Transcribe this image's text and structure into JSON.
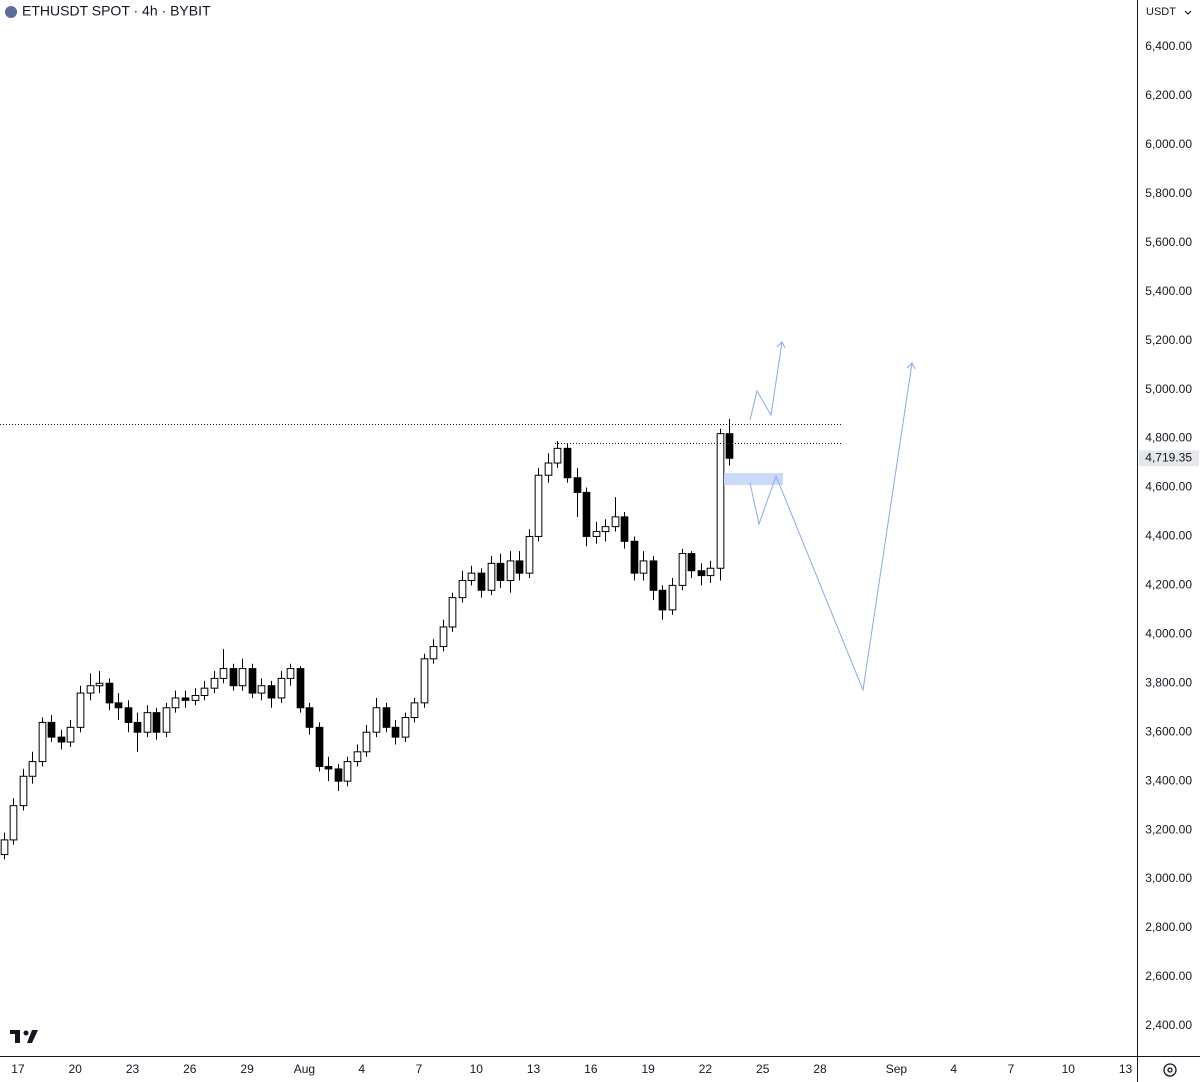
{
  "chart_data": {
    "type": "candlestick",
    "title": "ETHUSDT SPOT · 4h · BYBIT",
    "currency": "USDT",
    "colors": {
      "up": "#ffffff",
      "down": "#000000",
      "outline": "#000000"
    },
    "xlim": [
      16.06,
      75.6
    ],
    "xticks": [
      17,
      20,
      23,
      26,
      29,
      {
        "value": 32,
        "label": "Aug"
      },
      {
        "value": 35,
        "label": "4"
      },
      {
        "value": 38,
        "label": "7"
      },
      {
        "value": 41,
        "label": "10"
      },
      {
        "value": 44,
        "label": "13"
      },
      {
        "value": 47,
        "label": "16"
      },
      {
        "value": 50,
        "label": "19"
      },
      {
        "value": 53,
        "label": "22"
      },
      {
        "value": 56,
        "label": "25"
      },
      {
        "value": 59,
        "label": "28"
      },
      {
        "value": 63,
        "label": "Sep"
      },
      {
        "value": 66,
        "label": "4"
      },
      {
        "value": 69,
        "label": "7"
      },
      {
        "value": 72,
        "label": "10"
      },
      {
        "value": 75,
        "label": "13"
      }
    ],
    "ylim": [
      2277,
      6592
    ],
    "yticks": [
      {
        "value": 2400,
        "label": "2,400.00"
      },
      {
        "value": 2600,
        "label": "2,600.00"
      },
      {
        "value": 2800,
        "label": "2,800.00"
      },
      {
        "value": 3000,
        "label": "3,000.00"
      },
      {
        "value": 3200,
        "label": "3,200.00"
      },
      {
        "value": 3400,
        "label": "3,400.00"
      },
      {
        "value": 3600,
        "label": "3,600.00"
      },
      {
        "value": 3800,
        "label": "3,800.00"
      },
      {
        "value": 4000,
        "label": "4,000.00"
      },
      {
        "value": 4200,
        "label": "4,200.00"
      },
      {
        "value": 4400,
        "label": "4,400.00"
      },
      {
        "value": 4600,
        "label": "4,600.00"
      },
      {
        "value": 4800,
        "label": "4,800.00"
      },
      {
        "value": 5000,
        "label": "5,000.00"
      },
      {
        "value": 5200,
        "label": "5,200.00"
      },
      {
        "value": 5400,
        "label": "5,400.00"
      },
      {
        "value": 5600,
        "label": "5,600.00"
      },
      {
        "value": 5800,
        "label": "5,800.00"
      },
      {
        "value": 6000,
        "label": "6,000.00"
      },
      {
        "value": 6200,
        "label": "6,200.00"
      },
      {
        "value": 6400,
        "label": "6,400.00"
      }
    ],
    "grid": false,
    "last_price": {
      "value": 4719.35,
      "label": "4,719.35"
    },
    "candles": {
      "x": [
        16.25,
        16.75,
        17.25,
        17.75,
        18.25,
        18.75,
        19.25,
        19.75,
        20.25,
        20.75,
        21.25,
        21.75,
        22.25,
        22.75,
        23.25,
        23.75,
        24.25,
        24.75,
        25.25,
        25.75,
        26.25,
        26.75,
        27.25,
        27.75,
        28.25,
        28.75,
        29.25,
        29.75,
        30.25,
        30.75,
        31.25,
        31.75,
        32.25,
        32.75,
        33.25,
        33.75,
        34.25,
        34.75,
        35.25,
        35.75,
        36.25,
        36.75,
        37.25,
        37.75,
        38.25,
        38.75,
        39.25,
        39.75,
        40.25,
        40.75,
        41.25,
        41.75,
        42.25,
        42.75,
        43.25,
        43.75,
        44.25,
        44.75,
        45.25,
        45.75,
        46.25,
        46.75,
        47.25,
        47.75,
        48.25,
        48.75,
        49.25,
        49.75,
        50.25,
        50.75,
        51.25,
        51.75,
        52.25,
        52.75,
        53.25,
        53.75,
        54.25
      ],
      "open": [
        3100,
        3160,
        3300,
        3420,
        3480,
        3640,
        3580,
        3560,
        3620,
        3760,
        3790,
        3800,
        3720,
        3700,
        3640,
        3600,
        3680,
        3600,
        3700,
        3740,
        3730,
        3750,
        3780,
        3820,
        3860,
        3790,
        3860,
        3760,
        3790,
        3740,
        3820,
        3860,
        3700,
        3620,
        3460,
        3450,
        3400,
        3480,
        3520,
        3600,
        3700,
        3620,
        3580,
        3660,
        3720,
        3900,
        3950,
        4030,
        4150,
        4220,
        4250,
        4180,
        4290,
        4220,
        4300,
        4250,
        4400,
        4650,
        4700,
        4760,
        4640,
        4580,
        4400,
        4420,
        4440,
        4480,
        4380,
        4250,
        4300,
        4180,
        4100,
        4200,
        4330,
        4260,
        4240,
        4270,
        4820
      ],
      "high": [
        3190,
        3330,
        3450,
        3520,
        3660,
        3670,
        3610,
        3650,
        3790,
        3840,
        3850,
        3820,
        3760,
        3730,
        3680,
        3710,
        3700,
        3720,
        3770,
        3770,
        3780,
        3810,
        3850,
        3940,
        3880,
        3900,
        3880,
        3820,
        3810,
        3850,
        3880,
        3870,
        3720,
        3640,
        3500,
        3470,
        3500,
        3550,
        3630,
        3740,
        3720,
        3650,
        3680,
        3740,
        3920,
        3980,
        4060,
        4170,
        4260,
        4280,
        4270,
        4320,
        4330,
        4340,
        4340,
        4430,
        4680,
        4740,
        4790,
        4780,
        4680,
        4600,
        4460,
        4470,
        4560,
        4500,
        4400,
        4340,
        4320,
        4200,
        4230,
        4350,
        4340,
        4290,
        4300,
        4840,
        4880
      ],
      "low": [
        3080,
        3140,
        3280,
        3390,
        3460,
        3560,
        3530,
        3540,
        3600,
        3730,
        3760,
        3690,
        3650,
        3600,
        3520,
        3580,
        3570,
        3580,
        3680,
        3700,
        3710,
        3730,
        3760,
        3800,
        3770,
        3770,
        3740,
        3730,
        3700,
        3720,
        3790,
        3680,
        3590,
        3440,
        3400,
        3360,
        3380,
        3460,
        3500,
        3580,
        3600,
        3550,
        3560,
        3640,
        3700,
        3880,
        3930,
        4010,
        4130,
        4200,
        4150,
        4160,
        4190,
        4170,
        4220,
        4230,
        4380,
        4620,
        4680,
        4620,
        4480,
        4360,
        4370,
        4380,
        4420,
        4350,
        4220,
        4220,
        4140,
        4060,
        4080,
        4180,
        4230,
        4200,
        4210,
        4220,
        4690
      ],
      "close": [
        3160,
        3300,
        3420,
        3480,
        3640,
        3580,
        3560,
        3620,
        3760,
        3790,
        3800,
        3720,
        3700,
        3640,
        3600,
        3680,
        3600,
        3700,
        3740,
        3730,
        3750,
        3780,
        3820,
        3860,
        3790,
        3860,
        3760,
        3790,
        3740,
        3820,
        3860,
        3700,
        3620,
        3460,
        3450,
        3400,
        3480,
        3520,
        3600,
        3700,
        3620,
        3580,
        3660,
        3720,
        3900,
        3950,
        4030,
        4150,
        4220,
        4250,
        4180,
        4290,
        4220,
        4300,
        4250,
        4400,
        4650,
        4700,
        4760,
        4640,
        4580,
        4400,
        4420,
        4440,
        4480,
        4380,
        4250,
        4300,
        4180,
        4100,
        4200,
        4330,
        4260,
        4240,
        4270,
        4820,
        4719.35
      ]
    }
  }
}
